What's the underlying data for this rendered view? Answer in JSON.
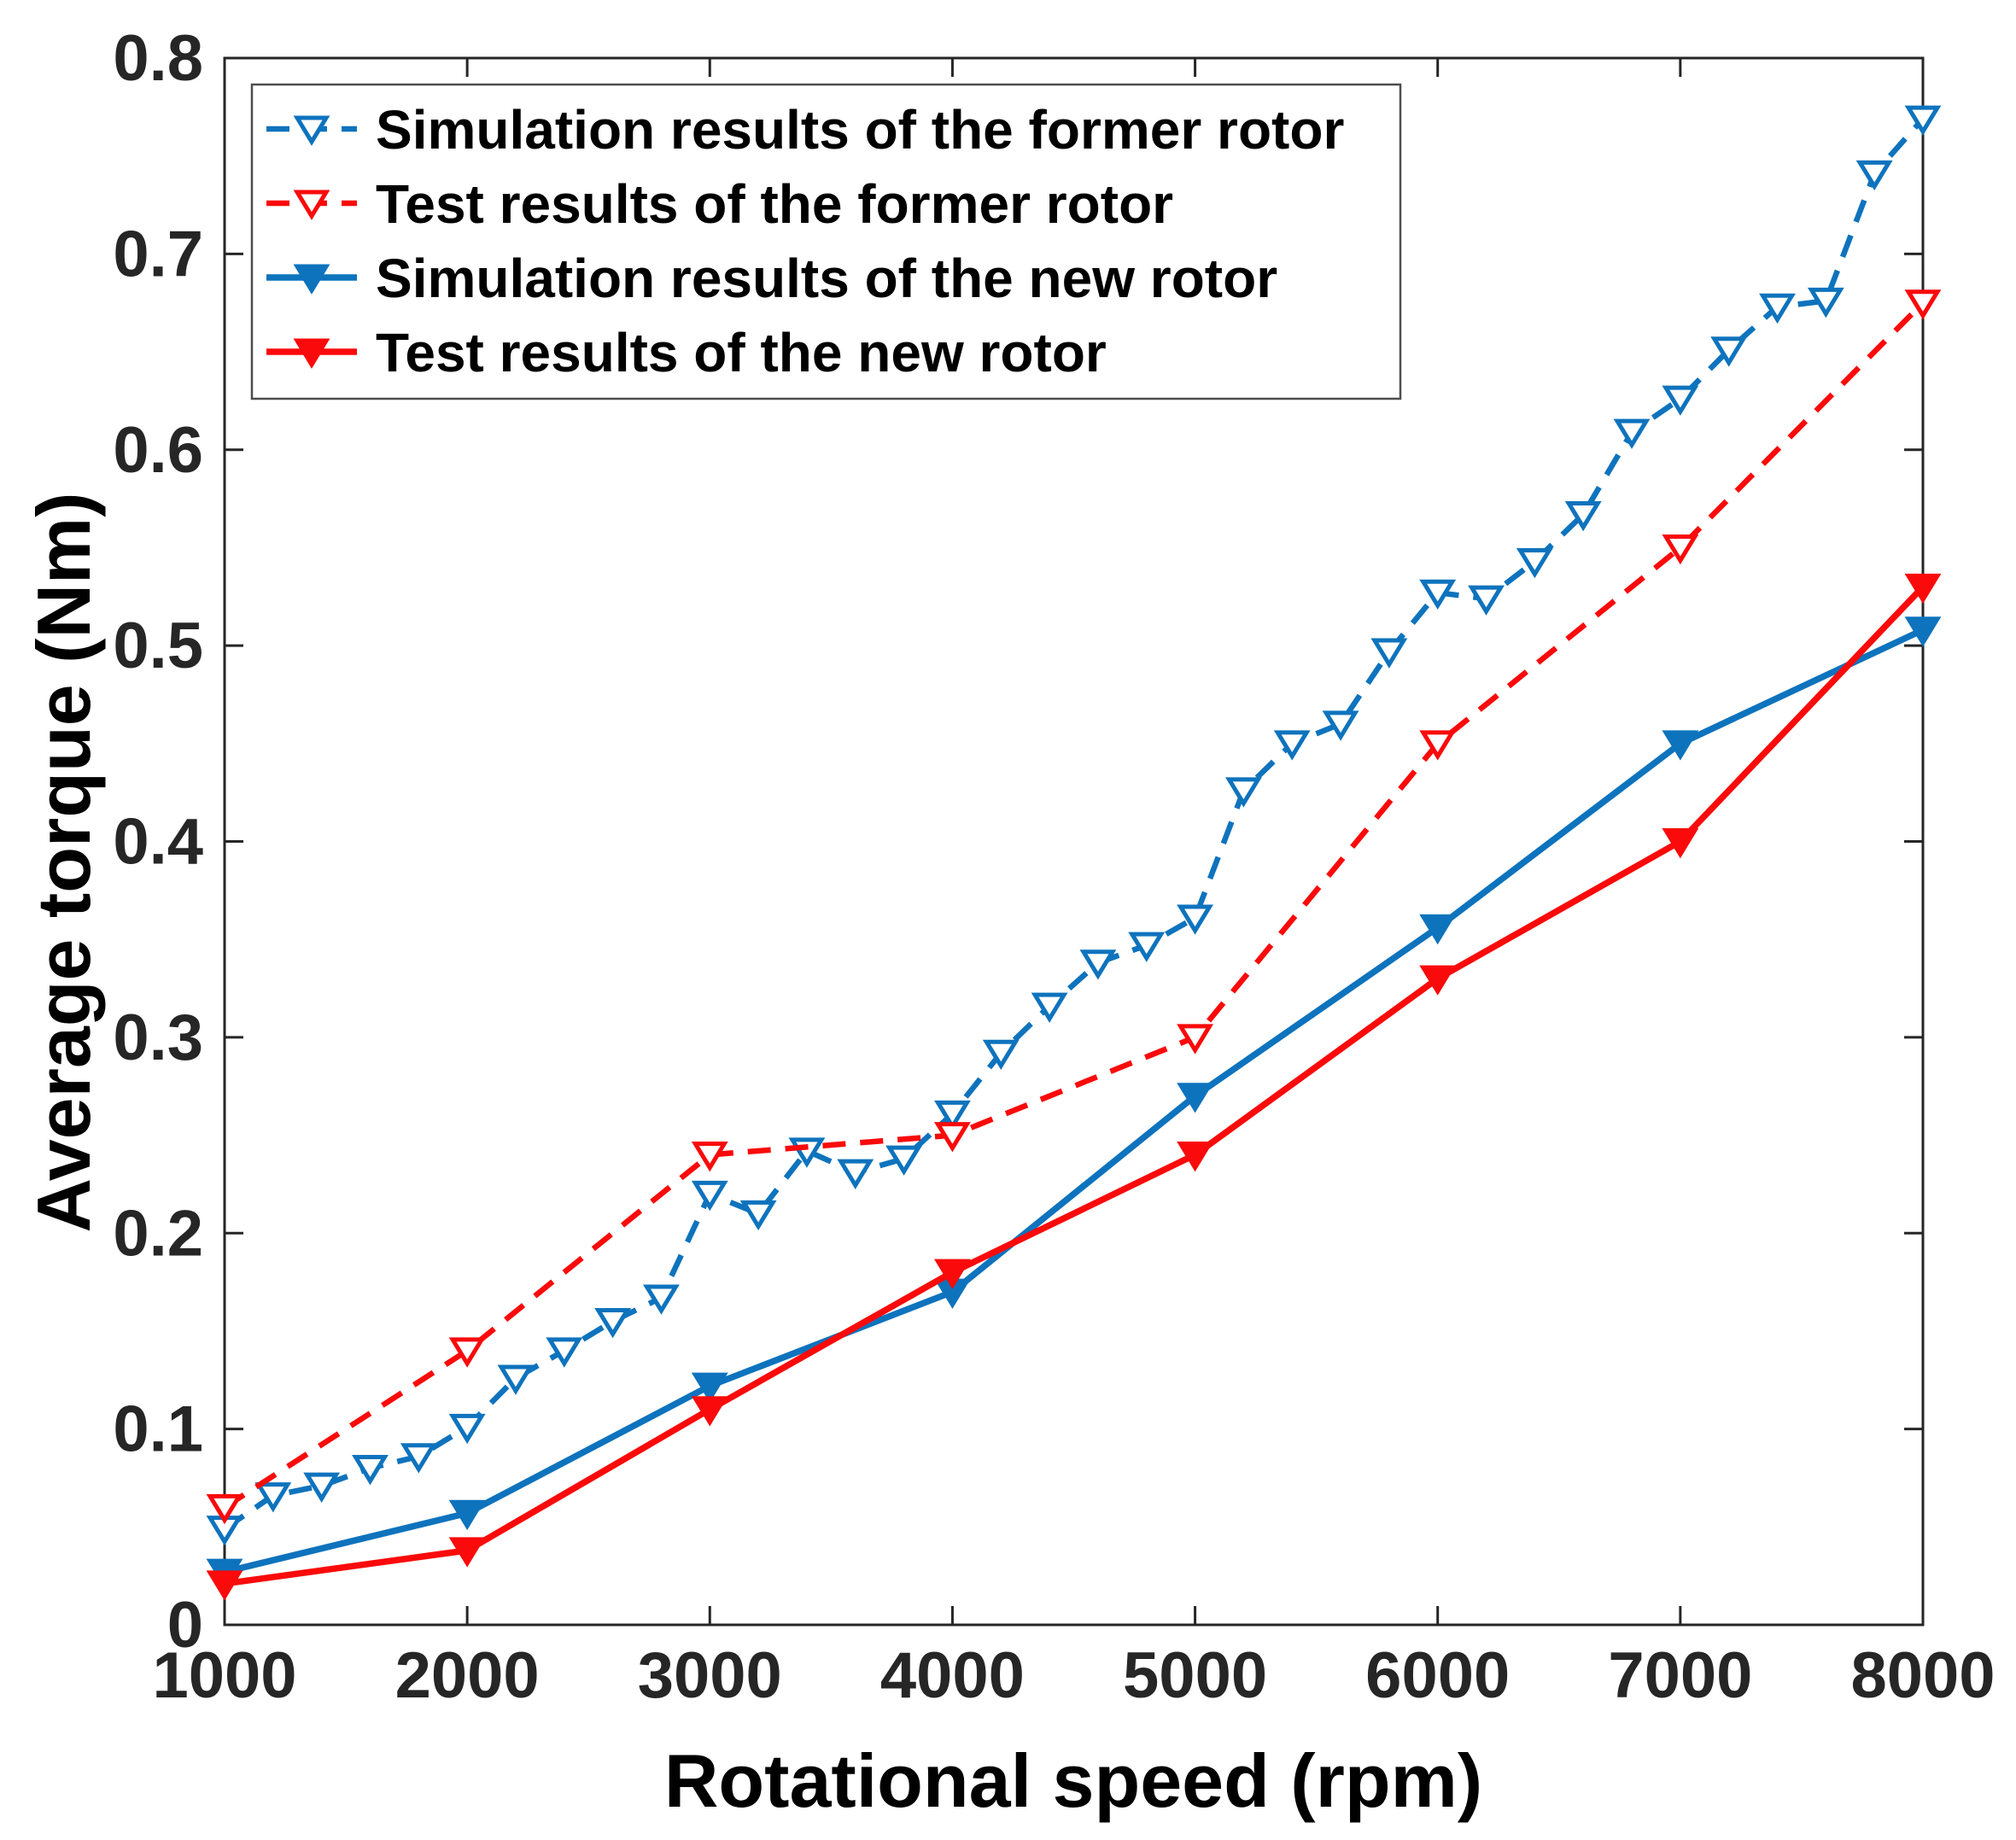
{
  "chart_data": {
    "type": "line",
    "title": "",
    "xlabel": "Rotational speed (rpm)",
    "ylabel": "Average torque (Nm)",
    "xlim": [
      1000,
      8000
    ],
    "ylim": [
      0,
      0.8
    ],
    "grid": false,
    "legend_position": "top-left",
    "xticks": [
      1000,
      2000,
      3000,
      4000,
      5000,
      6000,
      7000,
      8000
    ],
    "xtick_labels": [
      "1000",
      "2000",
      "3000",
      "4000",
      "5000",
      "6000",
      "7000",
      "8000"
    ],
    "yticks": [
      0,
      0.1,
      0.2,
      0.3,
      0.4,
      0.5,
      0.6,
      0.7,
      0.8
    ],
    "ytick_labels": [
      "0",
      "0.1",
      "0.2",
      "0.3",
      "0.4",
      "0.5",
      "0.6",
      "0.7",
      "0.8"
    ],
    "colors": {
      "blue": "#0e73bd",
      "red": "#fa0a0a",
      "axis": "#262626",
      "text": "#000000",
      "legend_border": "#4d4d4d",
      "background": "#ffffff"
    },
    "series": [
      {
        "name": "Simulation results of the former rotor",
        "color": "#0e73bd",
        "line_style": "dashed",
        "marker": "triangle-down-open",
        "x": [
          1000,
          1200,
          1400,
          1600,
          1800,
          2000,
          2200,
          2400,
          2600,
          2800,
          3000,
          3200,
          3400,
          3600,
          3800,
          4000,
          4200,
          4400,
          4600,
          4800,
          5000,
          5200,
          5400,
          5600,
          5800,
          6000,
          6200,
          6400,
          6600,
          6800,
          7000,
          7200,
          7400,
          7600,
          7800,
          8000
        ],
        "y": [
          0.049,
          0.066,
          0.071,
          0.08,
          0.086,
          0.101,
          0.126,
          0.14,
          0.155,
          0.167,
          0.22,
          0.21,
          0.242,
          0.231,
          0.238,
          0.261,
          0.292,
          0.316,
          0.338,
          0.347,
          0.361,
          0.426,
          0.45,
          0.46,
          0.497,
          0.527,
          0.524,
          0.543,
          0.567,
          0.609,
          0.626,
          0.651,
          0.673,
          0.676,
          0.741,
          0.769
        ]
      },
      {
        "name": "Test results of the former rotor",
        "color": "#fa0a0a",
        "line_style": "dashed",
        "marker": "triangle-down-open",
        "x": [
          1000,
          2000,
          3000,
          4000,
          5000,
          6000,
          7000,
          8000
        ],
        "y": [
          0.06,
          0.14,
          0.24,
          0.25,
          0.3,
          0.45,
          0.55,
          0.675
        ]
      },
      {
        "name": "Simulation results of the new rotor",
        "color": "#0e73bd",
        "line_style": "solid",
        "marker": "triangle-down-filled",
        "x": [
          1000,
          2000,
          3000,
          4000,
          5000,
          6000,
          7000,
          8000
        ],
        "y": [
          0.027,
          0.057,
          0.122,
          0.17,
          0.27,
          0.356,
          0.45,
          0.508
        ]
      },
      {
        "name": "Test results of the new rotor",
        "color": "#fa0a0a",
        "line_style": "solid",
        "marker": "triangle-down-filled",
        "x": [
          1000,
          2000,
          3000,
          4000,
          5000,
          6000,
          7000,
          8000
        ],
        "y": [
          0.021,
          0.038,
          0.11,
          0.18,
          0.24,
          0.33,
          0.4,
          0.53
        ]
      }
    ]
  }
}
